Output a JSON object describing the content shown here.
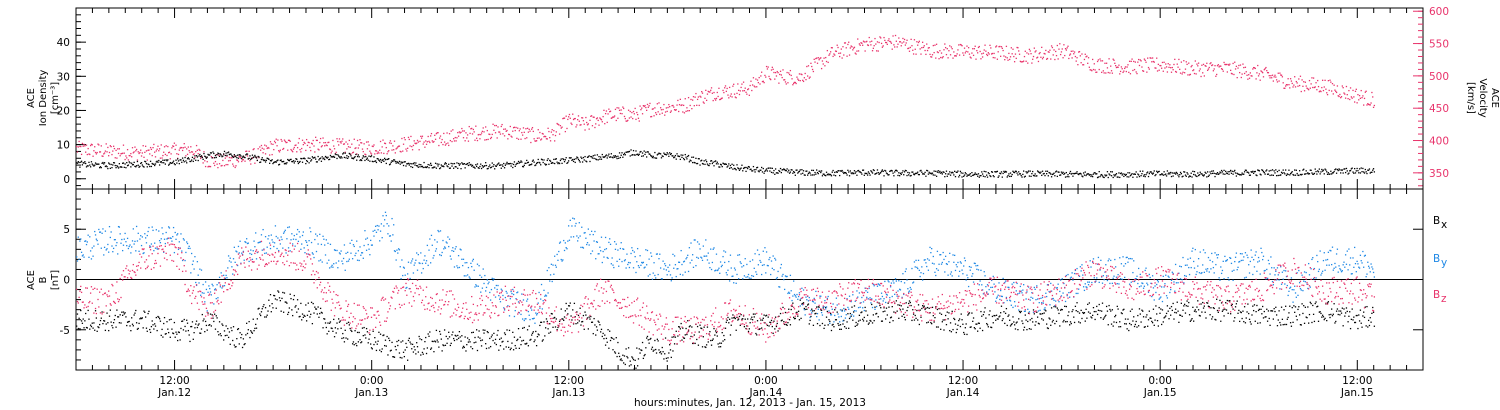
{
  "colors": {
    "black": "#000000",
    "pink": "#e8336b",
    "blue": "#1e88e5"
  },
  "chart_data": [
    {
      "type": "scatter",
      "panel": "top",
      "x_unit": "hours since Jan.12 00:00",
      "xlim": [
        6,
        88
      ],
      "left_axis": {
        "label_lines": [
          "ACE",
          "Ion Density",
          "[cm⁻³]"
        ],
        "ylim": [
          -3,
          50
        ],
        "ticks": [
          "0",
          "10",
          "20",
          "30",
          "40"
        ],
        "tick_values": [
          0,
          10,
          20,
          30,
          40
        ]
      },
      "right_axis": {
        "label_lines": [
          "ACE",
          "Velocity",
          "[km/s]"
        ],
        "ylim": [
          325,
          605
        ],
        "ticks": [
          "350",
          "400",
          "450",
          "500",
          "550",
          "600"
        ],
        "tick_values": [
          350,
          400,
          450,
          500,
          550,
          600
        ],
        "color": "#e8336b"
      },
      "series": [
        {
          "key": "density",
          "axis": "left",
          "color": "#000000",
          "x": [
            6,
            8,
            10,
            12,
            13,
            14,
            15,
            16,
            17,
            18,
            20,
            22,
            24,
            26,
            28,
            30,
            32,
            34,
            36,
            38,
            39,
            40,
            41,
            42,
            43,
            44,
            45,
            46,
            48,
            50,
            52,
            54,
            56,
            58,
            60,
            62,
            64,
            66,
            68,
            70,
            72,
            74,
            76,
            78,
            80,
            82,
            84,
            85
          ],
          "y": [
            4.5,
            4,
            4.5,
            5,
            6,
            7,
            7.5,
            7,
            6,
            5,
            5.5,
            7,
            6,
            4.5,
            4,
            4,
            4,
            5,
            5.5,
            6.5,
            7,
            8,
            7,
            7,
            6.5,
            5,
            4.5,
            3.5,
            2.5,
            2,
            1.8,
            2,
            1.8,
            1.8,
            1.5,
            1.5,
            1.6,
            1.5,
            1.4,
            1.5,
            1.6,
            1.5,
            1.8,
            2,
            2,
            2.2,
            2.5,
            2.5
          ]
        },
        {
          "key": "velocity",
          "axis": "right",
          "color": "#e8336b",
          "x": [
            6,
            8,
            10,
            12,
            13,
            14,
            15,
            16,
            17,
            18,
            20,
            22,
            24,
            26,
            28,
            30,
            32,
            34,
            35,
            36,
            37,
            38,
            39,
            40,
            41,
            42,
            43,
            44,
            45,
            46,
            47,
            48,
            49,
            50,
            52,
            54,
            56,
            58,
            60,
            62,
            64,
            66,
            68,
            70,
            72,
            74,
            76,
            78,
            80,
            82,
            84,
            85
          ],
          "y": [
            388,
            384,
            382,
            385,
            387,
            370,
            368,
            372,
            378,
            392,
            395,
            392,
            390,
            395,
            402,
            412,
            416,
            408,
            410,
            432,
            425,
            437,
            442,
            440,
            450,
            452,
            455,
            468,
            476,
            478,
            482,
            505,
            500,
            498,
            535,
            550,
            553,
            540,
            538,
            537,
            532,
            540,
            518,
            515,
            518,
            512,
            512,
            505,
            490,
            485,
            470,
            463
          ]
        }
      ]
    },
    {
      "type": "scatter",
      "panel": "bottom",
      "x_unit": "hours since Jan.12 00:00",
      "xlim": [
        6,
        88
      ],
      "left_axis": {
        "label_lines": [
          "ACE",
          "B",
          "[nT]"
        ],
        "ylim": [
          -9,
          9
        ],
        "ticks": [
          "-5",
          "0",
          "5"
        ],
        "tick_values": [
          -5,
          0,
          5
        ]
      },
      "zero_line": 0,
      "legend": [
        "B",
        "B",
        "B"
      ],
      "legend_subscripts": [
        "x",
        "y",
        "z"
      ],
      "legend_position": "right",
      "series": [
        {
          "key": "Bx",
          "color": "#000000",
          "x": [
            6,
            8,
            10,
            12,
            13,
            14,
            16,
            18,
            20,
            22,
            24,
            26,
            28,
            30,
            32,
            34,
            36,
            38,
            39,
            40,
            41,
            42,
            43,
            44,
            45,
            46,
            48,
            50,
            52,
            54,
            56,
            58,
            60,
            62,
            64,
            66,
            68,
            70,
            72,
            74,
            76,
            78,
            80,
            82,
            84,
            85
          ],
          "y": [
            -4,
            -4,
            -4,
            -5,
            -5,
            -4,
            -6,
            -2,
            -3,
            -5,
            -6,
            -7,
            -6,
            -6,
            -6,
            -5.5,
            -3,
            -5,
            -7,
            -8,
            -6,
            -7,
            -5,
            -5.5,
            -6,
            -4,
            -4.5,
            -3,
            -4,
            -3.5,
            -3,
            -3.5,
            -4.5,
            -3.5,
            -4,
            -3.5,
            -3,
            -4,
            -3.5,
            -3,
            -3,
            -3.5,
            -3.5,
            -3,
            -4,
            -3.5
          ]
        },
        {
          "key": "By",
          "color": "#1e88e5",
          "x": [
            6,
            8,
            10,
            12,
            13,
            14,
            16,
            18,
            20,
            22,
            24,
            25,
            26,
            28,
            30,
            32,
            34,
            36,
            38,
            40,
            42,
            44,
            46,
            48,
            50,
            52,
            54,
            56,
            58,
            60,
            62,
            64,
            66,
            68,
            70,
            72,
            74,
            76,
            78,
            80,
            82,
            84,
            85
          ],
          "y": [
            3,
            4,
            4,
            4,
            2,
            -2,
            3,
            4,
            4,
            2,
            4,
            6,
            0,
            4,
            1,
            -2,
            -3,
            5,
            3,
            2,
            1,
            3,
            1,
            2,
            -2,
            -3,
            -2,
            -1,
            2,
            1,
            -1,
            -2,
            -1,
            1,
            1,
            -1,
            2,
            1,
            2,
            -1,
            2,
            2,
            1
          ]
        },
        {
          "key": "Bz",
          "color": "#e8336b",
          "x": [
            6,
            8,
            10,
            12,
            13,
            14,
            16,
            18,
            20,
            22,
            24,
            26,
            28,
            30,
            32,
            34,
            36,
            38,
            40,
            42,
            44,
            46,
            48,
            50,
            52,
            54,
            56,
            58,
            60,
            62,
            64,
            66,
            68,
            70,
            72,
            74,
            76,
            78,
            80,
            82,
            84,
            85
          ],
          "y": [
            -2,
            -2,
            2,
            3,
            -1,
            -3,
            2,
            3,
            2,
            -3,
            -4,
            -1,
            -2,
            -3,
            -2,
            -2,
            -5,
            -1,
            -3,
            -5,
            -5,
            -3,
            -5,
            -2,
            -2,
            -1,
            -2,
            -3,
            -2,
            -1,
            -2,
            -1,
            1,
            -1,
            0,
            -1,
            -2,
            -1,
            1,
            -1,
            -1,
            -2
          ]
        }
      ]
    }
  ],
  "x_axis": {
    "tick_values": [
      12,
      24,
      36,
      48,
      60,
      72,
      84
    ],
    "ticks_time": [
      "12:00",
      "0:00",
      "12:00",
      "0:00",
      "12:00",
      "0:00",
      "12:00"
    ],
    "ticks_date": [
      "Jan.12",
      "Jan.13",
      "Jan.13",
      "Jan.14",
      "Jan.14",
      "Jan.15",
      "Jan.15"
    ],
    "title": "hours:minutes, Jan. 12, 2013 - Jan. 15, 2013"
  }
}
